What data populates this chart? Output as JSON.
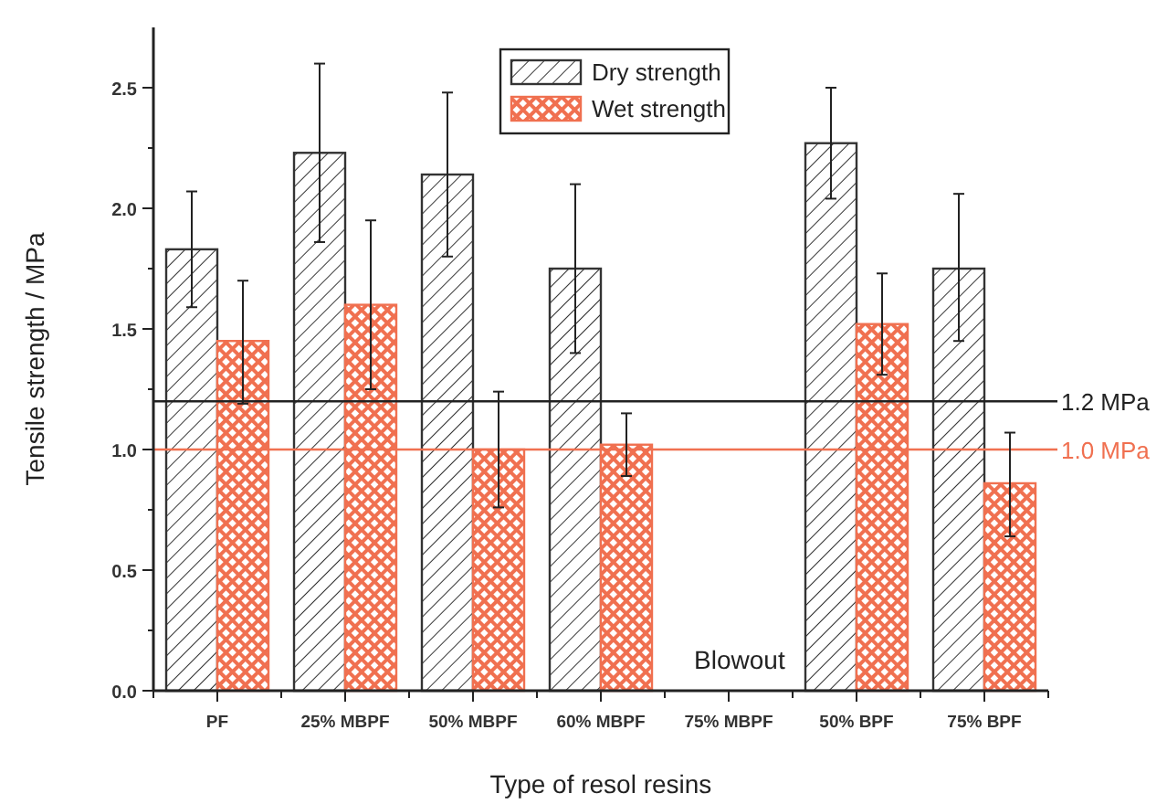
{
  "chart_data": {
    "type": "bar",
    "xlabel": "Type of resol resins",
    "ylabel": "Tensile strength / MPa",
    "categories": [
      "PF",
      "25% MBPF",
      "50% MBPF",
      "60% MBPF",
      "75% MBPF",
      "50% BPF",
      "75% BPF"
    ],
    "series": [
      {
        "name": "Dry strength",
        "color": "#333333",
        "values": [
          1.83,
          2.23,
          2.14,
          1.75,
          null,
          2.27,
          1.75
        ],
        "errors": [
          [
            1.59,
            2.07
          ],
          [
            1.86,
            2.6
          ],
          [
            1.8,
            2.48
          ],
          [
            1.4,
            2.1
          ],
          null,
          [
            2.04,
            2.5
          ],
          [
            1.45,
            2.06
          ]
        ]
      },
      {
        "name": "Wet strength",
        "color": "#f07050",
        "values": [
          1.45,
          1.6,
          1.0,
          1.02,
          null,
          1.52,
          0.86
        ],
        "errors": [
          [
            1.19,
            1.7
          ],
          [
            1.25,
            1.95
          ],
          [
            0.76,
            1.24
          ],
          [
            0.89,
            1.15
          ],
          null,
          [
            1.31,
            1.73
          ],
          [
            0.64,
            1.07
          ]
        ]
      }
    ],
    "ylim": [
      0,
      2.75
    ],
    "yticks": [
      {
        "value": 0,
        "label": "0.0"
      },
      {
        "value": 0.25,
        "label": null
      },
      {
        "value": 0.5,
        "label": "0.5"
      },
      {
        "value": 0.75,
        "label": null
      },
      {
        "value": 1,
        "label": "1.0"
      },
      {
        "value": 1.25,
        "label": null
      },
      {
        "value": 1.5,
        "label": "1.5"
      },
      {
        "value": 1.75,
        "label": null
      },
      {
        "value": 2,
        "label": "2.0"
      },
      {
        "value": 2.25,
        "label": null
      },
      {
        "value": 2.5,
        "label": "2.5"
      }
    ],
    "ref_lines": [
      {
        "axis": "y",
        "value": 1.2,
        "label": "1.2 MPa",
        "color": "#222222"
      },
      {
        "axis": "y",
        "value": 1.0,
        "label": "1.0 MPa",
        "color": "#f07050"
      }
    ],
    "annotations": [
      "Blowout"
    ],
    "legend": "top",
    "grid": false
  }
}
